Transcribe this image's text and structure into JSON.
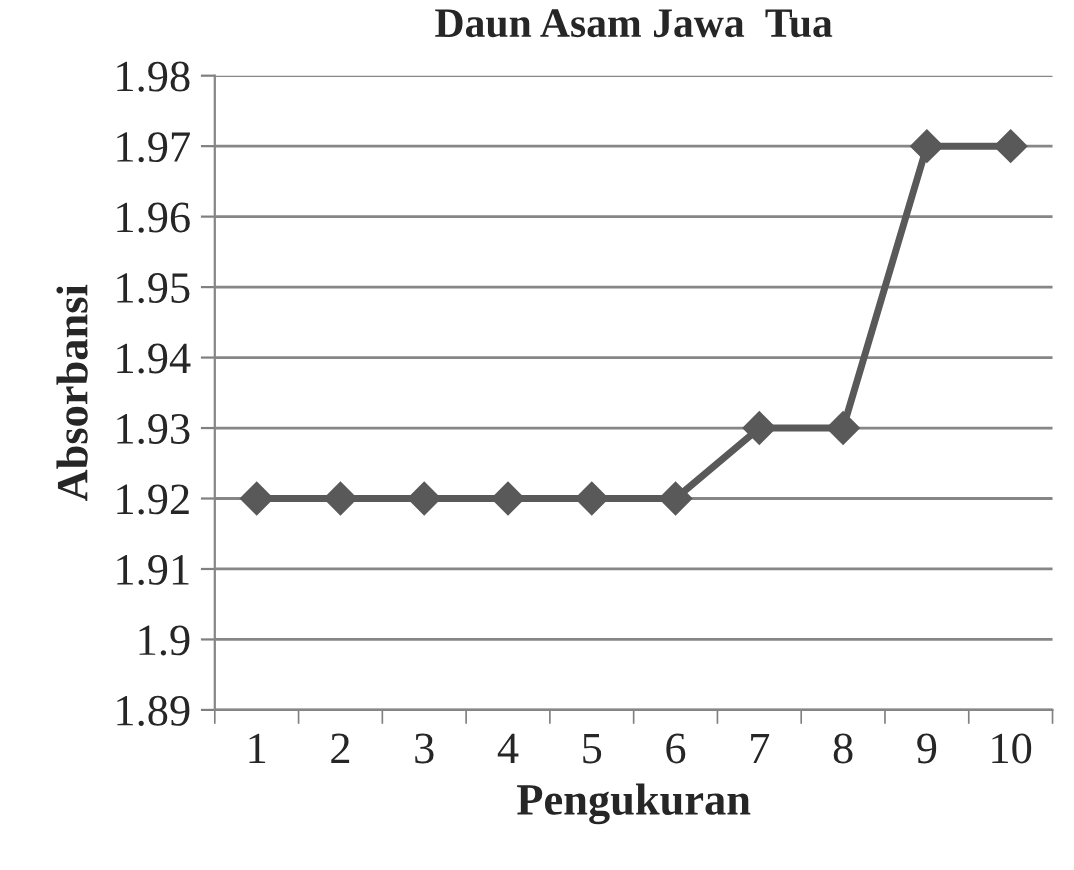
{
  "chart_data": {
    "type": "line",
    "title": "Daun Asam Jawa  Tua",
    "xlabel": "Pengukuran",
    "ylabel": "Absorbansi",
    "categories": [
      "1",
      "2",
      "3",
      "4",
      "5",
      "6",
      "7",
      "8",
      "9",
      "10"
    ],
    "series": [
      {
        "color": "#595959",
        "values": [
          1.92,
          1.92,
          1.92,
          1.92,
          1.92,
          1.92,
          1.93,
          1.93,
          1.97,
          1.97
        ]
      }
    ],
    "ylim": [
      1.89,
      1.98
    ],
    "yticks": [
      1.89,
      1.9,
      1.91,
      1.92,
      1.93,
      1.94,
      1.95,
      1.96,
      1.97,
      1.98
    ],
    "grid": "y",
    "marker": "diamond",
    "line_style": "solid",
    "legend": false
  }
}
